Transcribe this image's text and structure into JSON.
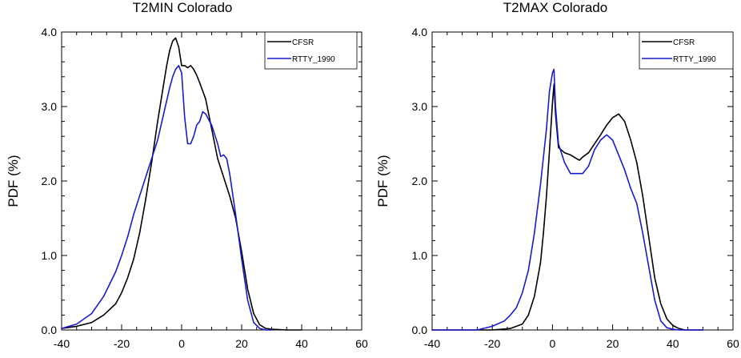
{
  "chart_data": [
    {
      "type": "line",
      "title": "T2MIN Colorado",
      "ylabel": "PDF (%)",
      "xlabel": "",
      "xlim": [
        -40,
        60
      ],
      "ylim": [
        0,
        4
      ],
      "xticks": [
        -40,
        -20,
        0,
        20,
        40,
        60
      ],
      "xtick_labels": [
        "-40",
        "-20",
        "0",
        "20",
        "40",
        "60"
      ],
      "yticks": [
        0,
        1,
        2,
        3,
        4
      ],
      "ytick_labels": [
        "0.0",
        "1.0",
        "2.0",
        "3.0",
        "4.0"
      ],
      "legend": "top-right",
      "series": [
        {
          "name": "CFSR",
          "color": "#000000",
          "x": [
            -40,
            -35,
            -30,
            -26,
            -22,
            -20,
            -18,
            -16,
            -14,
            -12,
            -10,
            -8,
            -6,
            -5,
            -4,
            -3,
            -2,
            -1,
            0,
            1,
            2,
            3,
            4,
            5,
            6,
            8,
            10,
            12,
            14,
            16,
            18,
            20,
            22,
            24,
            26,
            28,
            30,
            35,
            40
          ],
          "y": [
            0.02,
            0.05,
            0.1,
            0.2,
            0.35,
            0.5,
            0.7,
            0.95,
            1.3,
            1.75,
            2.25,
            2.8,
            3.3,
            3.55,
            3.75,
            3.88,
            3.92,
            3.8,
            3.55,
            3.55,
            3.52,
            3.55,
            3.5,
            3.42,
            3.32,
            3.1,
            2.7,
            2.3,
            2.05,
            1.8,
            1.5,
            1.05,
            0.55,
            0.22,
            0.07,
            0.02,
            0.01,
            0.0,
            0.0
          ]
        },
        {
          "name": "RTTY_1990",
          "color": "#1a1acc",
          "x": [
            -40,
            -35,
            -30,
            -26,
            -22,
            -20,
            -18,
            -16,
            -14,
            -12,
            -10,
            -8,
            -6,
            -4,
            -3,
            -2,
            -1,
            0,
            1,
            2,
            3,
            4,
            5,
            6,
            7,
            8,
            10,
            12,
            13,
            14,
            15,
            16,
            18,
            20,
            22,
            24,
            26,
            28,
            30
          ],
          "y": [
            0.02,
            0.08,
            0.22,
            0.45,
            0.78,
            1.0,
            1.25,
            1.55,
            1.8,
            2.05,
            2.3,
            2.55,
            2.9,
            3.25,
            3.4,
            3.5,
            3.55,
            3.45,
            2.85,
            2.5,
            2.5,
            2.6,
            2.75,
            2.8,
            2.93,
            2.9,
            2.75,
            2.5,
            2.33,
            2.35,
            2.3,
            2.1,
            1.55,
            0.95,
            0.4,
            0.1,
            0.02,
            0.0,
            0.0
          ]
        }
      ]
    },
    {
      "type": "line",
      "title": "T2MAX Colorado",
      "ylabel": "PDF (%)",
      "xlabel": "",
      "xlim": [
        -40,
        60
      ],
      "ylim": [
        0,
        4
      ],
      "xticks": [
        -40,
        -20,
        0,
        20,
        40,
        60
      ],
      "xtick_labels": [
        "-40",
        "-20",
        "0",
        "20",
        "40",
        "60"
      ],
      "yticks": [
        0,
        1,
        2,
        3,
        4
      ],
      "ytick_labels": [
        "0.0",
        "1.0",
        "2.0",
        "3.0",
        "4.0"
      ],
      "legend": "top-right",
      "series": [
        {
          "name": "CFSR",
          "color": "#000000",
          "x": [
            -40,
            -20,
            -14,
            -10,
            -8,
            -6,
            -4,
            -3,
            -2,
            -1,
            0,
            0.5,
            1,
            2,
            4,
            6,
            8,
            9,
            10,
            12,
            14,
            16,
            18,
            20,
            22,
            24,
            26,
            28,
            30,
            32,
            34,
            36,
            38,
            40,
            42,
            44,
            46,
            50
          ],
          "y": [
            0.0,
            0.0,
            0.02,
            0.08,
            0.2,
            0.45,
            0.9,
            1.3,
            1.8,
            2.4,
            3.05,
            3.3,
            2.9,
            2.45,
            2.38,
            2.35,
            2.3,
            2.28,
            2.32,
            2.38,
            2.5,
            2.62,
            2.75,
            2.85,
            2.9,
            2.8,
            2.55,
            2.25,
            1.8,
            1.25,
            0.7,
            0.35,
            0.15,
            0.06,
            0.02,
            0.0,
            0.0,
            0.0
          ]
        },
        {
          "name": "RTTY_1990",
          "color": "#1a1acc",
          "x": [
            -40,
            -25,
            -20,
            -16,
            -14,
            -12,
            -10,
            -8,
            -6,
            -4,
            -2,
            -1,
            0,
            0.5,
            1,
            2,
            4,
            6,
            8,
            10,
            12,
            14,
            16,
            18,
            20,
            22,
            24,
            26,
            28,
            30,
            32,
            34,
            36,
            38,
            40,
            42,
            46,
            50
          ],
          "y": [
            0.0,
            0.0,
            0.05,
            0.12,
            0.2,
            0.3,
            0.5,
            0.8,
            1.3,
            1.95,
            2.7,
            3.2,
            3.45,
            3.5,
            3.0,
            2.5,
            2.25,
            2.1,
            2.1,
            2.1,
            2.2,
            2.42,
            2.55,
            2.62,
            2.55,
            2.35,
            2.15,
            1.9,
            1.7,
            1.3,
            0.85,
            0.4,
            0.12,
            0.03,
            0.01,
            0.0,
            0.0,
            0.0
          ]
        }
      ]
    }
  ]
}
